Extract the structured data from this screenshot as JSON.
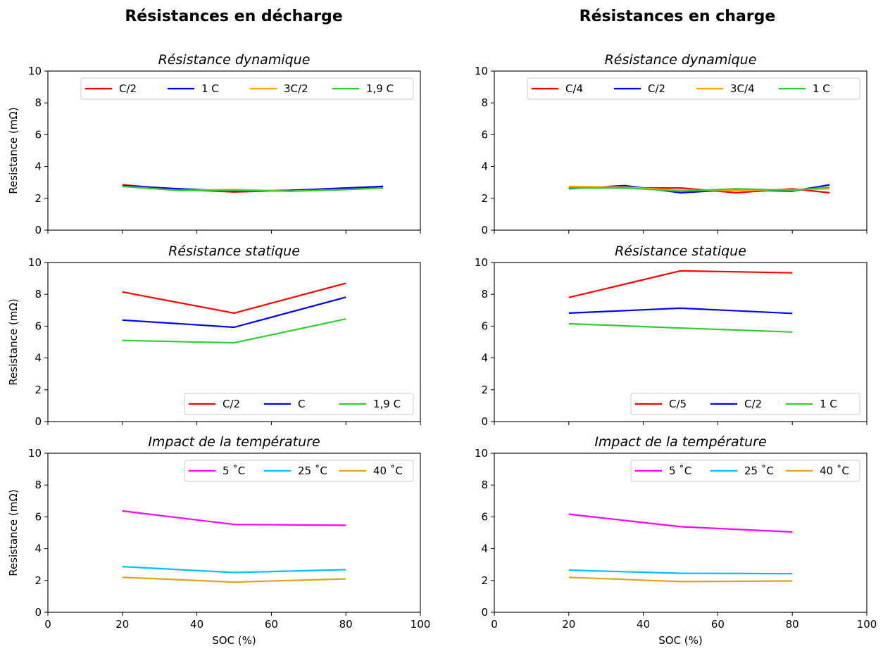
{
  "column_titles": [
    "Résistances en décharge",
    "Résistances en charge"
  ],
  "chart_data": [
    {
      "type": "line",
      "panel": "decharge-dynamique",
      "title": "Résistance dynamique",
      "xlabel": "",
      "ylabel": "Resistance (mΩ)",
      "xlim": [
        0,
        100
      ],
      "ylim": [
        0,
        10
      ],
      "grid": false,
      "legend_position": "top-right",
      "legend_columns": 4,
      "series": [
        {
          "name": "C/2",
          "color": "#ff0000",
          "x": [
            20,
            35,
            50,
            65,
            80,
            90
          ],
          "y": [
            2.85,
            2.55,
            2.4,
            2.5,
            2.6,
            2.75
          ]
        },
        {
          "name": "1 C",
          "color": "#0000ff",
          "x": [
            20,
            35,
            50,
            65,
            80,
            90
          ],
          "y": [
            2.8,
            2.6,
            2.45,
            2.5,
            2.65,
            2.75
          ]
        },
        {
          "name": "3C/2",
          "color": "#ffa500",
          "x": [
            20,
            35,
            50,
            65,
            80,
            90
          ],
          "y": [
            2.75,
            2.5,
            2.55,
            2.45,
            2.55,
            2.65
          ]
        },
        {
          "name": "1,9 C",
          "color": "#32cd32",
          "x": [
            20,
            35,
            50,
            65,
            80,
            90
          ],
          "y": [
            2.75,
            2.5,
            2.5,
            2.45,
            2.55,
            2.65
          ]
        }
      ]
    },
    {
      "type": "line",
      "panel": "charge-dynamique",
      "title": "Résistance dynamique",
      "xlabel": "",
      "ylabel": "",
      "xlim": [
        0,
        100
      ],
      "ylim": [
        0,
        10
      ],
      "grid": false,
      "legend_position": "top-right",
      "legend_columns": 4,
      "series": [
        {
          "name": "C/4",
          "color": "#ff0000",
          "x": [
            20,
            35,
            50,
            65,
            80,
            90
          ],
          "y": [
            2.7,
            2.65,
            2.65,
            2.35,
            2.6,
            2.35
          ]
        },
        {
          "name": "C/2",
          "color": "#0000ff",
          "x": [
            20,
            35,
            50,
            65,
            80,
            90
          ],
          "y": [
            2.6,
            2.8,
            2.35,
            2.55,
            2.45,
            2.85
          ]
        },
        {
          "name": "3C/4",
          "color": "#ffa500",
          "x": [
            20,
            35,
            50,
            65,
            80,
            90
          ],
          "y": [
            2.75,
            2.7,
            2.5,
            2.5,
            2.55,
            2.6
          ]
        },
        {
          "name": "1 C",
          "color": "#32cd32",
          "x": [
            20,
            35,
            50,
            65,
            80,
            90
          ],
          "y": [
            2.65,
            2.65,
            2.45,
            2.6,
            2.5,
            2.7
          ]
        }
      ]
    },
    {
      "type": "line",
      "panel": "decharge-statique",
      "title": "Résistance statique",
      "xlabel": "",
      "ylabel": "Resistance (mΩ)",
      "xlim": [
        0,
        100
      ],
      "ylim": [
        0,
        10
      ],
      "grid": false,
      "legend_position": "lower-right",
      "legend_columns": 3,
      "series": [
        {
          "name": "C/2",
          "color": "#ff0000",
          "x": [
            20,
            50,
            80
          ],
          "y": [
            8.15,
            6.82,
            8.7
          ]
        },
        {
          "name": "C",
          "color": "#0000ff",
          "x": [
            20,
            50,
            80
          ],
          "y": [
            6.38,
            5.93,
            7.82
          ]
        },
        {
          "name": "1,9 C",
          "color": "#32cd32",
          "x": [
            20,
            50,
            80
          ],
          "y": [
            5.1,
            4.95,
            6.45
          ]
        }
      ]
    },
    {
      "type": "line",
      "panel": "charge-statique",
      "title": "Résistance statique",
      "xlabel": "",
      "ylabel": "",
      "xlim": [
        0,
        100
      ],
      "ylim": [
        0,
        10
      ],
      "grid": false,
      "legend_position": "lower-right",
      "legend_columns": 3,
      "series": [
        {
          "name": "C/5",
          "color": "#ff0000",
          "x": [
            20,
            50,
            80
          ],
          "y": [
            7.8,
            9.48,
            9.35
          ]
        },
        {
          "name": "C/2",
          "color": "#0000ff",
          "x": [
            20,
            50,
            80
          ],
          "y": [
            6.82,
            7.13,
            6.8
          ]
        },
        {
          "name": "1 C",
          "color": "#32cd32",
          "x": [
            20,
            50,
            80
          ],
          "y": [
            6.15,
            5.88,
            5.63
          ]
        }
      ]
    },
    {
      "type": "line",
      "panel": "decharge-temperature",
      "title": "Impact de la température",
      "xlabel": "SOC (%)",
      "ylabel": "Resistance (mΩ)",
      "xlim": [
        0,
        100
      ],
      "ylim": [
        0,
        10
      ],
      "grid": false,
      "legend_position": "top-right",
      "legend_columns": 3,
      "series": [
        {
          "name": "5 ˚C",
          "color": "#ff00ff",
          "x": [
            20,
            50,
            80
          ],
          "y": [
            6.37,
            5.52,
            5.47
          ]
        },
        {
          "name": "25 ˚C",
          "color": "#00bfff",
          "x": [
            20,
            50,
            80
          ],
          "y": [
            2.87,
            2.5,
            2.68
          ]
        },
        {
          "name": "40 ˚C",
          "color": "#daa520",
          "x": [
            20,
            50,
            80
          ],
          "y": [
            2.2,
            1.9,
            2.1
          ]
        }
      ]
    },
    {
      "type": "line",
      "panel": "charge-temperature",
      "title": "Impact de la température",
      "xlabel": "SOC (%)",
      "ylabel": "",
      "xlim": [
        0,
        100
      ],
      "ylim": [
        0,
        10
      ],
      "grid": false,
      "legend_position": "top-right",
      "legend_columns": 3,
      "series": [
        {
          "name": "5 ˚C",
          "color": "#ff00ff",
          "x": [
            20,
            50,
            80
          ],
          "y": [
            6.17,
            5.38,
            5.05
          ]
        },
        {
          "name": "25 ˚C",
          "color": "#00bfff",
          "x": [
            20,
            50,
            80
          ],
          "y": [
            2.65,
            2.45,
            2.43
          ]
        },
        {
          "name": "40 ˚C",
          "color": "#daa520",
          "x": [
            20,
            50,
            80
          ],
          "y": [
            2.2,
            1.93,
            1.97
          ]
        }
      ]
    }
  ],
  "axes": {
    "xticks": [
      0,
      20,
      40,
      60,
      80,
      100
    ],
    "yticks": [
      0,
      2,
      4,
      6,
      8,
      10
    ]
  }
}
